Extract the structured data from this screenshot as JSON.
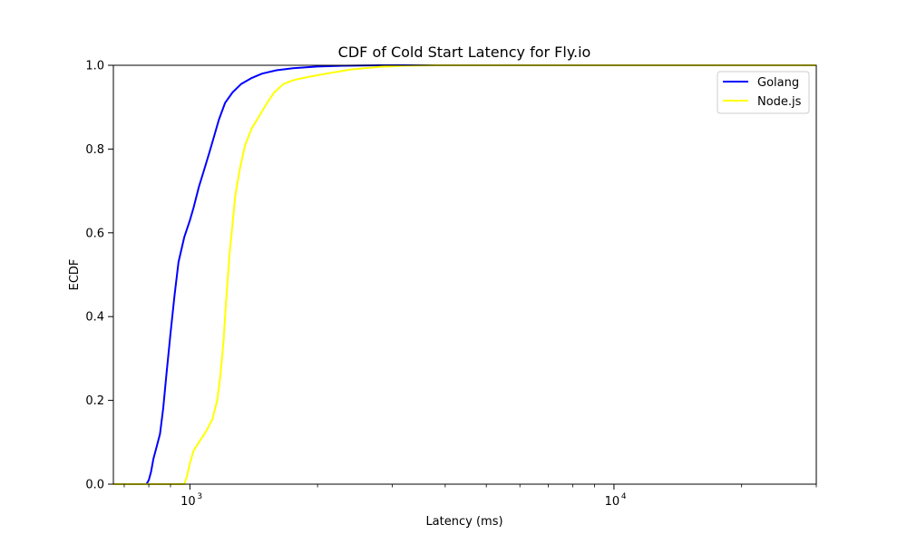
{
  "chart_data": {
    "type": "line",
    "title": "CDF of Cold Start Latency for Fly.io",
    "xlabel": "Latency (ms)",
    "ylabel": "ECDF",
    "xscale": "log",
    "xlim": [
      660,
      30000
    ],
    "ylim": [
      0,
      1
    ],
    "x_major_ticks": [
      {
        "value": 1000,
        "base": "10",
        "exp": "3"
      },
      {
        "value": 10000,
        "base": "10",
        "exp": "4"
      }
    ],
    "x_minor_ticks": [
      700,
      800,
      900,
      2000,
      3000,
      4000,
      5000,
      6000,
      7000,
      8000,
      9000,
      20000,
      30000
    ],
    "y_ticks": [
      {
        "value": 0.0,
        "label": "0.0"
      },
      {
        "value": 0.2,
        "label": "0.2"
      },
      {
        "value": 0.4,
        "label": "0.4"
      },
      {
        "value": 0.6,
        "label": "0.6"
      },
      {
        "value": 0.8,
        "label": "0.8"
      },
      {
        "value": 1.0,
        "label": "1.0"
      }
    ],
    "grid": false,
    "legend_position": "top-right",
    "series": [
      {
        "name": "Golang",
        "color": "#0000ff",
        "points": [
          [
            660,
            0.0
          ],
          [
            790,
            0.0
          ],
          [
            800,
            0.01
          ],
          [
            810,
            0.03
          ],
          [
            820,
            0.06
          ],
          [
            835,
            0.09
          ],
          [
            850,
            0.12
          ],
          [
            865,
            0.18
          ],
          [
            880,
            0.26
          ],
          [
            900,
            0.36
          ],
          [
            920,
            0.45
          ],
          [
            940,
            0.53
          ],
          [
            970,
            0.59
          ],
          [
            1000,
            0.63
          ],
          [
            1020,
            0.66
          ],
          [
            1050,
            0.71
          ],
          [
            1080,
            0.75
          ],
          [
            1110,
            0.79
          ],
          [
            1140,
            0.83
          ],
          [
            1170,
            0.87
          ],
          [
            1210,
            0.91
          ],
          [
            1260,
            0.935
          ],
          [
            1320,
            0.955
          ],
          [
            1400,
            0.97
          ],
          [
            1480,
            0.98
          ],
          [
            1600,
            0.988
          ],
          [
            1750,
            0.993
          ],
          [
            2000,
            0.997
          ],
          [
            2300,
            0.999
          ],
          [
            2800,
            1.0
          ],
          [
            30000,
            1.0
          ]
        ]
      },
      {
        "name": "Node.js",
        "color": "#ffff00",
        "points": [
          [
            660,
            0.0
          ],
          [
            970,
            0.0
          ],
          [
            985,
            0.02
          ],
          [
            1000,
            0.05
          ],
          [
            1020,
            0.08
          ],
          [
            1050,
            0.1
          ],
          [
            1090,
            0.125
          ],
          [
            1130,
            0.155
          ],
          [
            1160,
            0.2
          ],
          [
            1180,
            0.26
          ],
          [
            1200,
            0.34
          ],
          [
            1220,
            0.45
          ],
          [
            1240,
            0.55
          ],
          [
            1260,
            0.62
          ],
          [
            1280,
            0.69
          ],
          [
            1310,
            0.75
          ],
          [
            1350,
            0.81
          ],
          [
            1400,
            0.85
          ],
          [
            1460,
            0.88
          ],
          [
            1520,
            0.91
          ],
          [
            1580,
            0.935
          ],
          [
            1660,
            0.955
          ],
          [
            1760,
            0.965
          ],
          [
            1900,
            0.972
          ],
          [
            2100,
            0.98
          ],
          [
            2400,
            0.99
          ],
          [
            2800,
            0.996
          ],
          [
            3200,
            0.999
          ],
          [
            3800,
            1.0
          ],
          [
            30000,
            1.0
          ]
        ]
      }
    ]
  }
}
